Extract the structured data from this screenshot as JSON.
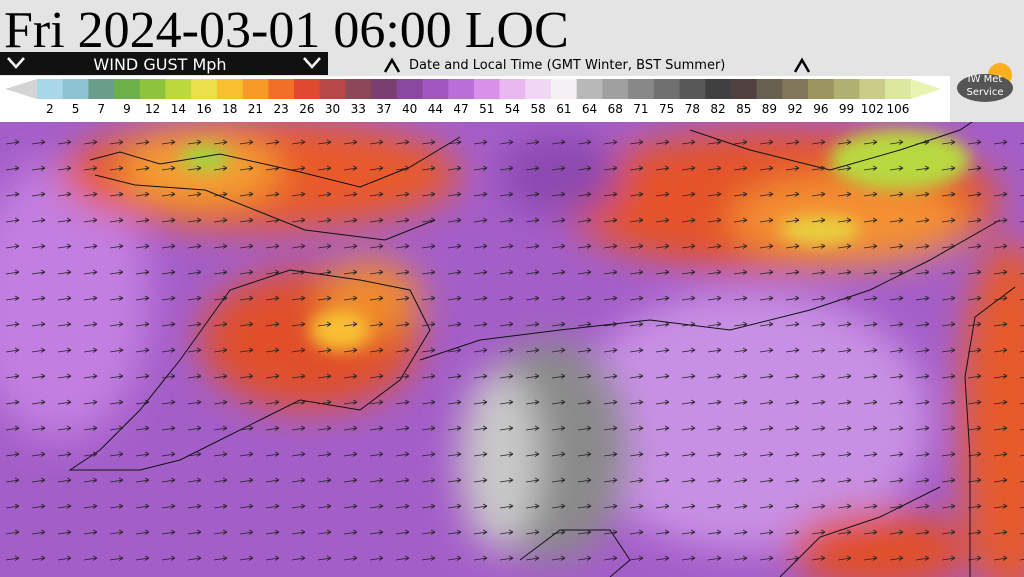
{
  "header": {
    "title": "Fri 2024-03-01 06:00 LOC",
    "variable": "WIND GUST Mph",
    "time_note": "Date and Local Time (GMT Winter, BST Summer)"
  },
  "legend": {
    "items": [
      {
        "label": 2,
        "color": "#a8d8e8"
      },
      {
        "label": 5,
        "color": "#8cc4d4"
      },
      {
        "label": 7,
        "color": "#6a9e8a"
      },
      {
        "label": 9,
        "color": "#6cb04a"
      },
      {
        "label": 12,
        "color": "#8cc43c"
      },
      {
        "label": 14,
        "color": "#bcd83c"
      },
      {
        "label": 16,
        "color": "#ece04a"
      },
      {
        "label": 18,
        "color": "#f8c030"
      },
      {
        "label": 21,
        "color": "#f89a28"
      },
      {
        "label": 23,
        "color": "#f07028"
      },
      {
        "label": 26,
        "color": "#e04830"
      },
      {
        "label": 30,
        "color": "#b84848"
      },
      {
        "label": 33,
        "color": "#8c4858"
      },
      {
        "label": 37,
        "color": "#7a3e70"
      },
      {
        "label": 40,
        "color": "#8a48a0"
      },
      {
        "label": 44,
        "color": "#a058c0"
      },
      {
        "label": 47,
        "color": "#b870d8"
      },
      {
        "label": 51,
        "color": "#d890e8"
      },
      {
        "label": 54,
        "color": "#e8b8f0"
      },
      {
        "label": 58,
        "color": "#f0d8f4"
      },
      {
        "label": 61,
        "color": "#f4f0f4"
      },
      {
        "label": 64,
        "color": "#b8b8b8"
      },
      {
        "label": 68,
        "color": "#a0a0a0"
      },
      {
        "label": 71,
        "color": "#888888"
      },
      {
        "label": 75,
        "color": "#707070"
      },
      {
        "label": 78,
        "color": "#585858"
      },
      {
        "label": 82,
        "color": "#404040"
      },
      {
        "label": 85,
        "color": "#504040"
      },
      {
        "label": 89,
        "color": "#686050"
      },
      {
        "label": 92,
        "color": "#807858"
      },
      {
        "label": 96,
        "color": "#9a9460"
      },
      {
        "label": 99,
        "color": "#b0b070"
      },
      {
        "label": 102,
        "color": "#c8cc88"
      },
      {
        "label": 106,
        "color": "#dce8a0"
      }
    ]
  },
  "logo": {
    "line1": "IW Met",
    "line2": "Service"
  }
}
